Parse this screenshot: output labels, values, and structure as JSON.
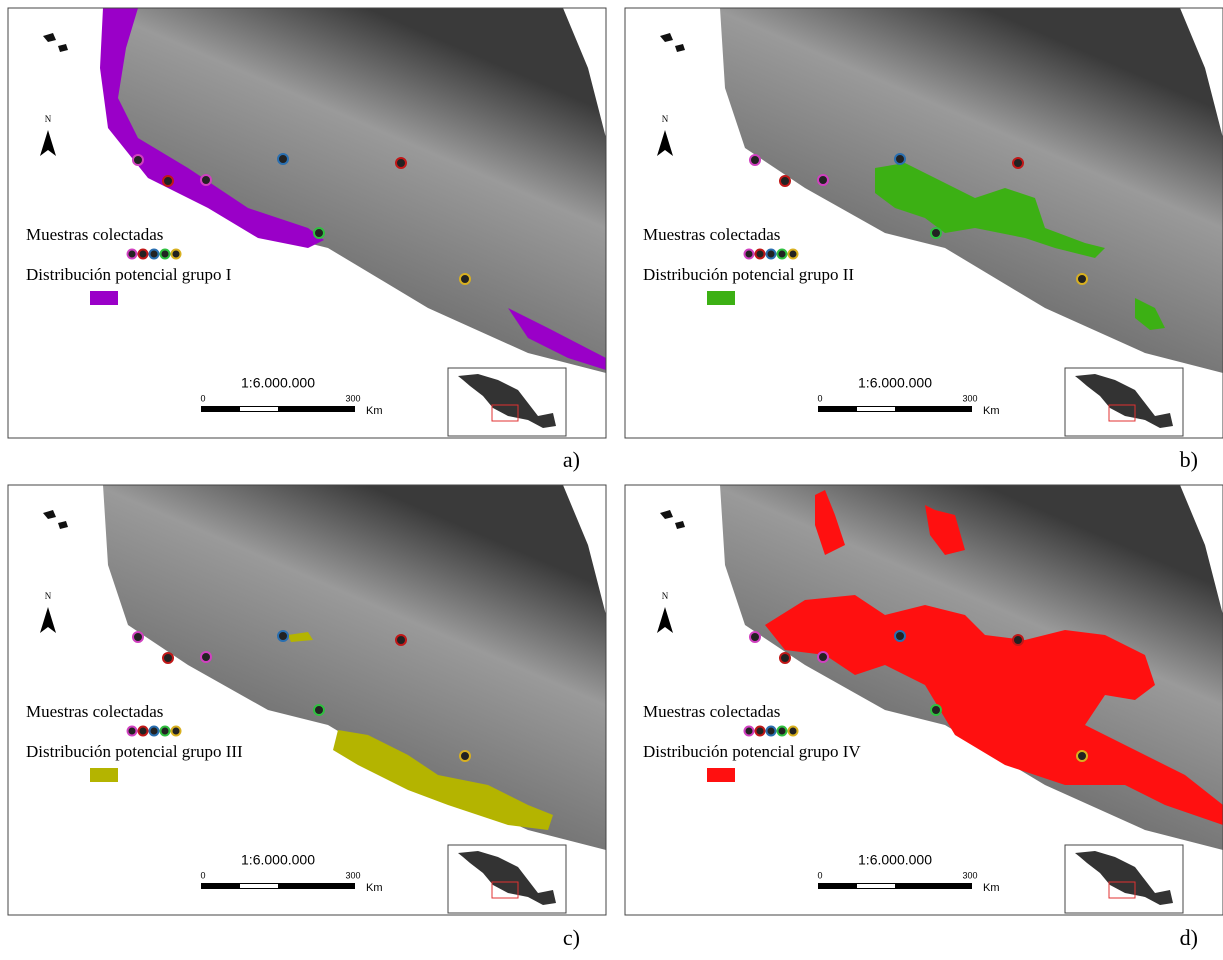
{
  "north": "N",
  "sample_legend": "Muestras colectadas",
  "sample_colors": [
    "#d040c0",
    "#c01818",
    "#2a6fb0",
    "#30c040",
    "#d8b020"
  ],
  "scale": {
    "ratio": "1:6.000.000",
    "start": "0",
    "end": "300",
    "unit": "Km"
  },
  "panels": [
    {
      "label": "a)",
      "legend": "Distribución potencial grupo I",
      "color": "#9a00c8"
    },
    {
      "label": "b)",
      "legend": "Distribución potencial grupo II",
      "color": "#3cb014"
    },
    {
      "label": "c)",
      "legend": "Distribución potencial grupo III",
      "color": "#b4b400"
    },
    {
      "label": "d)",
      "legend": "Distribución potencial grupo IV",
      "color": "#ff1010"
    }
  ]
}
